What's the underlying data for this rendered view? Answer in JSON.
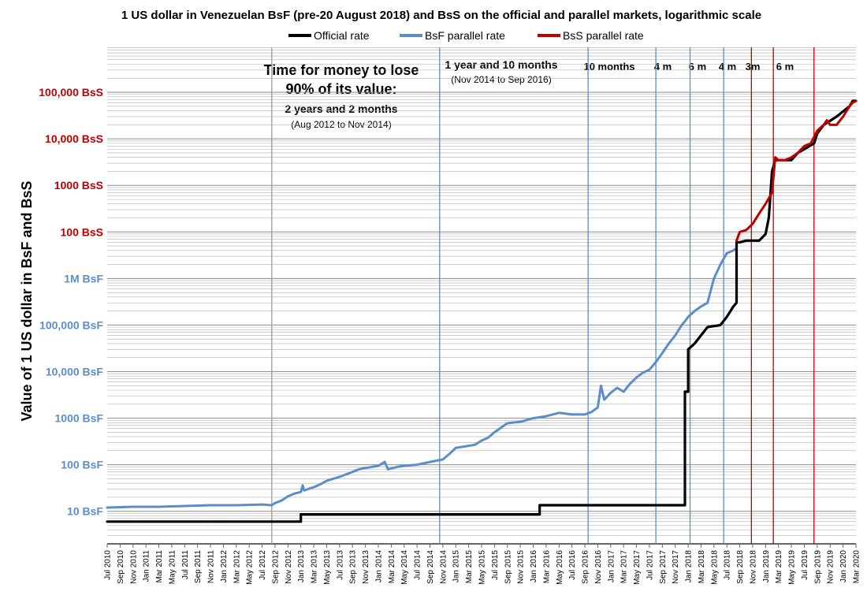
{
  "chart_data": {
    "type": "line",
    "title": "1 US dollar in Venezuelan BsF (pre-20 August 2018) and BsS on the official and parallel markets, logarithmic scale",
    "ylabel": "Value of 1 US dollar in BsF and BsS",
    "xlabel": "",
    "scale": "log",
    "ylim_bsf": [
      2,
      100000000000
    ],
    "colors": {
      "official": "#000000",
      "bsf": "#5b8ec9",
      "bss": "#c00000",
      "bsf_tick": "#5b8ec9",
      "bss_tick": "#c00000",
      "grid": "#b0b0b0",
      "marker_gray": "#999999"
    },
    "legend": [
      {
        "key": "official",
        "label": "Official rate",
        "color": "#000000"
      },
      {
        "key": "bsf",
        "label": "BsF parallel rate",
        "color": "#5b8ec9"
      },
      {
        "key": "bss",
        "label": "BsS parallel rate",
        "color": "#c00000"
      }
    ],
    "y_ticks": [
      {
        "label": "10 BsF",
        "value": 10,
        "kind": "bsf"
      },
      {
        "label": "100 BsF",
        "value": 100,
        "kind": "bsf"
      },
      {
        "label": "1000 BsF",
        "value": 1000,
        "kind": "bsf"
      },
      {
        "label": "10,000 BsF",
        "value": 10000,
        "kind": "bsf"
      },
      {
        "label": "100,000 BsF",
        "value": 100000,
        "kind": "bsf"
      },
      {
        "label": "1M BsF",
        "value": 1000000,
        "kind": "bsf"
      },
      {
        "label": "100 BsS",
        "value": 10000000,
        "kind": "bss"
      },
      {
        "label": "1000 BsS",
        "value": 100000000,
        "kind": "bss"
      },
      {
        "label": "10,000 BsS",
        "value": 1000000000,
        "kind": "bss"
      },
      {
        "label": "100,000 BsS",
        "value": 10000000000,
        "kind": "bss"
      }
    ],
    "x_start_month": 0,
    "x_end_month": 116,
    "x_ticks": [
      "Jul 2010",
      "Sep 2010",
      "Nov 2010",
      "Jan 2011",
      "Mar 2011",
      "May 2011",
      "Jul 2011",
      "Sep 2011",
      "Nov 2011",
      "Jan 2012",
      "Mar 2012",
      "May 2012",
      "Jul 2012",
      "Sep 2012",
      "Nov 2012",
      "Jan 2013",
      "Mar 2013",
      "May 2013",
      "Jul 2013",
      "Sep 2013",
      "Nov 2013",
      "Jan 2014",
      "Mar 2014",
      "May 2014",
      "Jul 2014",
      "Sep 2014",
      "Nov 2014",
      "Jan 2015",
      "Mar 2015",
      "May 2015",
      "Jul 2015",
      "Sep 2015",
      "Nov 2015",
      "Jan 2016",
      "Mar 2016",
      "May 2016",
      "Jul 2016",
      "Sep 2016",
      "Nov 2016",
      "Jan 2017",
      "Mar 2017",
      "May 2017",
      "Jul 2017",
      "Sep 2017",
      "Nov 2017",
      "Jan 2018",
      "Mar 2018",
      "May 2018",
      "Jul 2018",
      "Sep 2018",
      "Nov 2018",
      "Jan 2019",
      "Mar 2019",
      "May 2019",
      "Jul 2019",
      "Sep 2019",
      "Nov 2019",
      "Jan 2020",
      "Mar 2020"
    ],
    "vlines": [
      {
        "month": 25.5,
        "color": "gray"
      },
      {
        "month": 51.5,
        "color": "blue"
      },
      {
        "month": 74.5,
        "color": "blue"
      },
      {
        "month": 85,
        "color": "blue"
      },
      {
        "month": 90.3,
        "color": "blue"
      },
      {
        "month": 95.5,
        "color": "blue"
      },
      {
        "month": 99.8,
        "color": "red"
      },
      {
        "month": 103.2,
        "color": "red"
      },
      {
        "month": 109.5,
        "color": "red"
      }
    ],
    "series": [
      {
        "name": "Official rate",
        "key": "official",
        "step": true,
        "points": [
          [
            0,
            6
          ],
          [
            30,
            6
          ],
          [
            30,
            8.6
          ],
          [
            67,
            8.6
          ],
          [
            67,
            13.5
          ],
          [
            89.5,
            13.5
          ],
          [
            89.5,
            3700
          ],
          [
            90,
            3700
          ],
          [
            90,
            30000
          ],
          [
            91,
            40000
          ],
          [
            92,
            60000
          ],
          [
            93,
            90000
          ],
          [
            95,
            100000
          ],
          [
            96,
            150000
          ],
          [
            97,
            250000
          ],
          [
            97.5,
            300000
          ],
          [
            97.5,
            6000000
          ],
          [
            98,
            6000000
          ],
          [
            99,
            6500000
          ],
          [
            101,
            6500000
          ],
          [
            102,
            9000000
          ],
          [
            102.5,
            20000000
          ],
          [
            103,
            200000000
          ],
          [
            103.5,
            350000000
          ],
          [
            106,
            350000000
          ],
          [
            107,
            500000000
          ],
          [
            108,
            600000000
          ],
          [
            109.5,
            800000000
          ],
          [
            110,
            1300000000
          ],
          [
            111,
            2000000000
          ],
          [
            113,
            3000000000
          ],
          [
            115,
            5000000000
          ],
          [
            115.5,
            6500000000
          ],
          [
            116,
            6500000000
          ]
        ]
      },
      {
        "name": "BsF parallel rate",
        "key": "bsf",
        "step": false,
        "points": [
          [
            0,
            12
          ],
          [
            4,
            12.5
          ],
          [
            8,
            12.5
          ],
          [
            12,
            13
          ],
          [
            16,
            13.5
          ],
          [
            20,
            13.5
          ],
          [
            24,
            14
          ],
          [
            25.5,
            13.5
          ],
          [
            26,
            15
          ],
          [
            27,
            17
          ],
          [
            28,
            21
          ],
          [
            29,
            24
          ],
          [
            30,
            26
          ],
          [
            30.3,
            36
          ],
          [
            30.5,
            28
          ],
          [
            32,
            33
          ],
          [
            33,
            38
          ],
          [
            34,
            45
          ],
          [
            36,
            55
          ],
          [
            37,
            62
          ],
          [
            38,
            70
          ],
          [
            39,
            80
          ],
          [
            40,
            85
          ],
          [
            42,
            95
          ],
          [
            43,
            115
          ],
          [
            43.5,
            80
          ],
          [
            45,
            90
          ],
          [
            46,
            95
          ],
          [
            48,
            100
          ],
          [
            50,
            115
          ],
          [
            52,
            130
          ],
          [
            53,
            170
          ],
          [
            54,
            230
          ],
          [
            56,
            255
          ],
          [
            57,
            270
          ],
          [
            58,
            330
          ],
          [
            59,
            380
          ],
          [
            60,
            500
          ],
          [
            62,
            780
          ],
          [
            64,
            830
          ],
          [
            66,
            1000
          ],
          [
            68,
            1100
          ],
          [
            70,
            1300
          ],
          [
            72,
            1200
          ],
          [
            74,
            1200
          ],
          [
            75,
            1350
          ],
          [
            76,
            1700
          ],
          [
            76.5,
            5000
          ],
          [
            77,
            2500
          ],
          [
            78,
            3500
          ],
          [
            79,
            4500
          ],
          [
            80,
            3700
          ],
          [
            81,
            5500
          ],
          [
            82,
            7500
          ],
          [
            83,
            9500
          ],
          [
            84,
            11000
          ],
          [
            85,
            16000
          ],
          [
            86,
            25000
          ],
          [
            87,
            40000
          ],
          [
            88,
            60000
          ],
          [
            89,
            100000
          ],
          [
            89.5,
            120000
          ],
          [
            90,
            150000
          ],
          [
            91,
            200000
          ],
          [
            92,
            250000
          ],
          [
            93,
            300000
          ],
          [
            94,
            1000000
          ],
          [
            95,
            2000000
          ],
          [
            96,
            3500000
          ],
          [
            97,
            4000000
          ],
          [
            97.5,
            4500000
          ]
        ]
      },
      {
        "name": "BsS parallel rate",
        "key": "bss",
        "step": false,
        "points": [
          [
            97.5,
            6500000
          ],
          [
            98,
            10000000
          ],
          [
            99,
            11000000
          ],
          [
            100,
            15000000
          ],
          [
            101,
            25000000
          ],
          [
            102,
            40000000
          ],
          [
            103,
            70000000
          ],
          [
            103.5,
            400000000
          ],
          [
            104,
            350000000
          ],
          [
            105,
            350000000
          ],
          [
            106,
            400000000
          ],
          [
            107,
            500000000
          ],
          [
            108,
            700000000
          ],
          [
            109,
            800000000
          ],
          [
            110,
            1500000000
          ],
          [
            111,
            2000000000
          ],
          [
            111.5,
            2500000000
          ],
          [
            112,
            2000000000
          ],
          [
            113,
            2000000000
          ],
          [
            114,
            3000000000
          ],
          [
            115,
            5000000000
          ],
          [
            115.5,
            6000000000
          ],
          [
            116,
            6500000000
          ]
        ]
      }
    ]
  },
  "annotations": {
    "headline_line1": "Time for money to lose",
    "headline_line2": "90% of its value:",
    "first_period": "2 years and 2 months",
    "first_range": "(Aug 2012 to Nov 2014)",
    "second_period": "1 year and 10 months",
    "second_range": "(Nov 2014  to Sep 2016)",
    "seg_10m": "10 months",
    "seg_4m_a": "4 m",
    "seg_6m_a": "6 m",
    "seg_4m_b": "4 m",
    "seg_3m": "3m",
    "seg_6m_b": "6 m"
  }
}
